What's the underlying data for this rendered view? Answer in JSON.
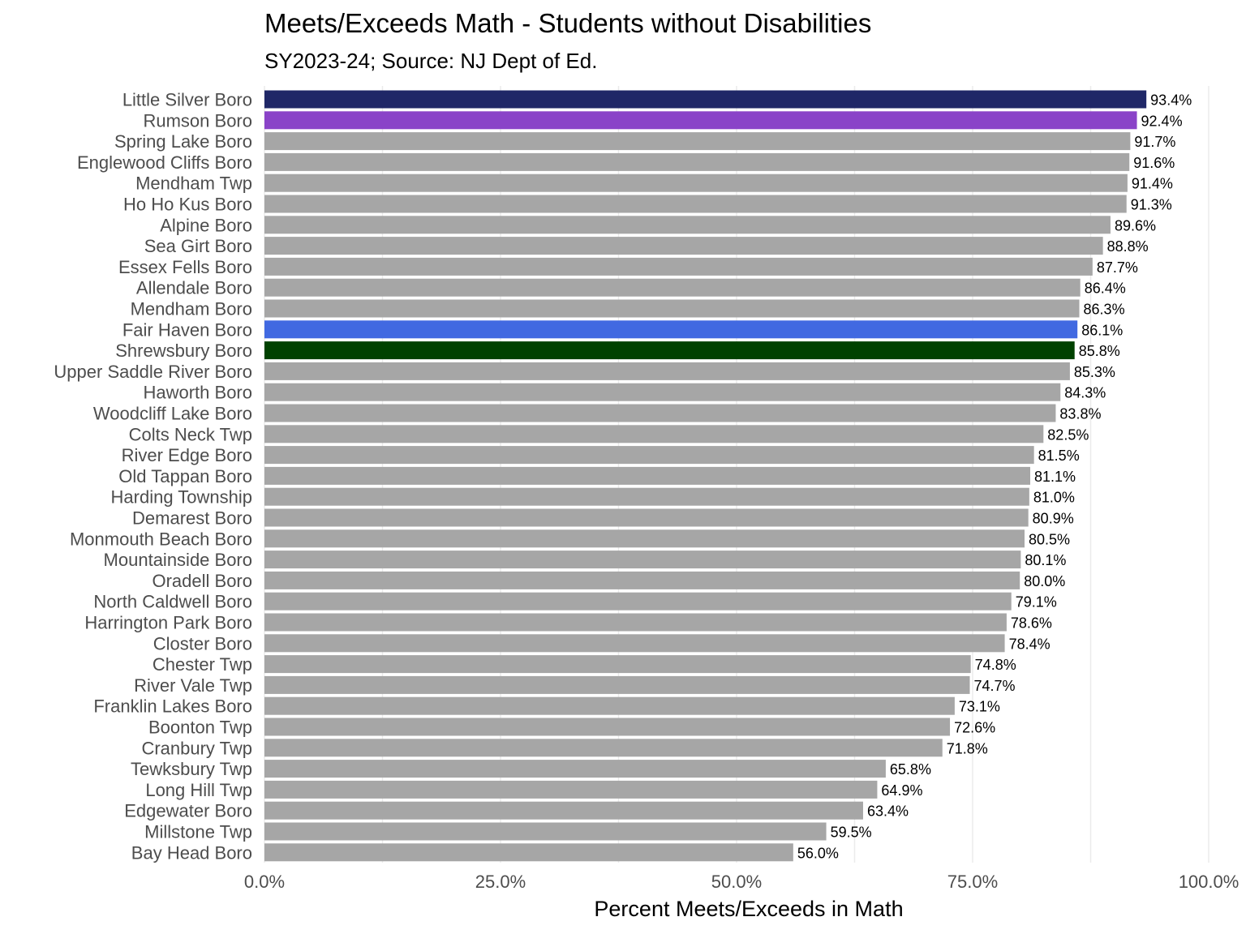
{
  "chart_data": {
    "type": "bar",
    "orientation": "horizontal",
    "title": "Meets/Exceeds Math - Students without Disabilities",
    "subtitle": "SY2023-24; Source: NJ Dept of Ed.",
    "xlabel": "Percent Meets/Exceeds in Math",
    "ylabel": "",
    "xlim": [
      0,
      100
    ],
    "x_ticks": [
      0,
      25,
      50,
      75,
      100
    ],
    "x_tick_labels": [
      "0.0%",
      "25.0%",
      "50.0%",
      "75.0%",
      "100.0%"
    ],
    "grid": true,
    "legend": "none",
    "default_color": "#a6a6a6",
    "categories": [
      "Little Silver Boro",
      "Rumson Boro",
      "Spring Lake Boro",
      "Englewood Cliffs Boro",
      "Mendham Twp",
      "Ho Ho Kus Boro",
      "Alpine Boro",
      "Sea Girt Boro",
      "Essex Fells Boro",
      "Allendale Boro",
      "Mendham Boro",
      "Fair Haven Boro",
      "Shrewsbury Boro",
      "Upper Saddle River Boro",
      "Haworth Boro",
      "Woodcliff Lake Boro",
      "Colts Neck Twp",
      "River Edge Boro",
      "Old Tappan Boro",
      "Harding Township",
      "Demarest Boro",
      "Monmouth Beach Boro",
      "Mountainside Boro",
      "Oradell Boro",
      "North Caldwell Boro",
      "Harrington Park Boro",
      "Closter Boro",
      "Chester Twp",
      "River Vale Twp",
      "Franklin Lakes Boro",
      "Boonton Twp",
      "Cranbury Twp",
      "Tewksbury Twp",
      "Long Hill Twp",
      "Edgewater Boro",
      "Millstone Twp",
      "Bay Head Boro"
    ],
    "values": [
      93.4,
      92.4,
      91.7,
      91.6,
      91.4,
      91.3,
      89.6,
      88.8,
      87.7,
      86.4,
      86.3,
      86.1,
      85.8,
      85.3,
      84.3,
      83.8,
      82.5,
      81.5,
      81.1,
      81.0,
      80.9,
      80.5,
      80.1,
      80.0,
      79.1,
      78.6,
      78.4,
      74.8,
      74.7,
      73.1,
      72.6,
      71.8,
      65.8,
      64.9,
      63.4,
      59.5,
      56.0
    ],
    "value_labels": [
      "93.4%",
      "92.4%",
      "91.7%",
      "91.6%",
      "91.4%",
      "91.3%",
      "89.6%",
      "88.8%",
      "87.7%",
      "86.4%",
      "86.3%",
      "86.1%",
      "85.8%",
      "85.3%",
      "84.3%",
      "83.8%",
      "82.5%",
      "81.5%",
      "81.1%",
      "81.0%",
      "80.9%",
      "80.5%",
      "80.1%",
      "80.0%",
      "79.1%",
      "78.6%",
      "78.4%",
      "74.8%",
      "74.7%",
      "73.1%",
      "72.6%",
      "71.8%",
      "65.8%",
      "64.9%",
      "63.4%",
      "59.5%",
      "56.0%"
    ],
    "highlight_colors": {
      "Little Silver Boro": "#1f2767",
      "Rumson Boro": "#8a43c8",
      "Fair Haven Boro": "#4169e1",
      "Shrewsbury Boro": "#004200"
    }
  }
}
